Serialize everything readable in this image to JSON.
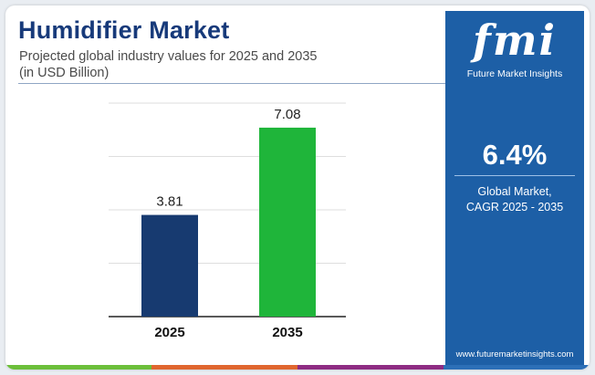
{
  "header": {
    "title": "Humidifier Market",
    "subtitle_line1": "Projected global industry values for 2025 and 2035",
    "subtitle_line2": "(in USD Billion)"
  },
  "side_panel": {
    "logo_text": "fmi",
    "logo_subtext": "Future Market Insights",
    "cagr_value": "6.4%",
    "cagr_label_line1": "Global Market,",
    "cagr_label_line2": "CAGR 2025 - 2035",
    "website": "www.futuremarketinsights.com",
    "background_color": "#1d5fa6"
  },
  "chart_data": {
    "type": "bar",
    "title": "Humidifier Market",
    "subtitle": "Projected global industry values for 2025 and 2035 (in USD Billion)",
    "categories": [
      "2025",
      "2035"
    ],
    "values": [
      3.81,
      7.08
    ],
    "data_labels": [
      "3.81",
      "7.08"
    ],
    "bar_colors": [
      "#173a70",
      "#1fb53a"
    ],
    "xlabel": "",
    "ylabel": "",
    "ylim": [
      0,
      8
    ],
    "grid": true,
    "legend": "none"
  },
  "colors": {
    "title": "#173a7a",
    "stripe": [
      "#6cbf3a",
      "#e0662f",
      "#8e2c83",
      "#2c6fb7"
    ]
  }
}
